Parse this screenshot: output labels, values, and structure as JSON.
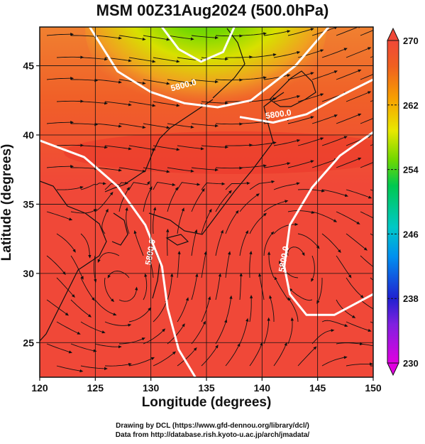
{
  "title": "MSM 00Z31Aug2024 (500.0hPa)",
  "x_axis": {
    "label": "Longitude (degrees)",
    "ticks": [
      120,
      125,
      130,
      135,
      140,
      145,
      150
    ],
    "range": [
      120,
      150
    ]
  },
  "y_axis": {
    "label": "Latitude  (degrees)",
    "ticks": [
      25,
      30,
      35,
      40,
      45
    ],
    "range": [
      22.5,
      47.8
    ]
  },
  "colorbar": {
    "ticks": [
      230,
      238,
      246,
      254,
      262,
      270
    ],
    "range": [
      230,
      270
    ],
    "colors": [
      "#e000e0",
      "#2020d0",
      "#0090f0",
      "#00c8c8",
      "#00c850",
      "#70d800",
      "#e8e800",
      "#f8a000",
      "#f06020",
      "#f04838"
    ]
  },
  "contours": [
    {
      "label": "5800.0",
      "path_desc": "subtropical ridge line north",
      "points": [
        [
          138,
          41.3
        ],
        [
          141,
          40.9
        ],
        [
          144,
          41.5
        ],
        [
          147,
          42.8
        ],
        [
          150,
          44.0
        ]
      ]
    },
    {
      "label": "5800.0",
      "path_desc": "",
      "points": [
        [
          120,
          39.6
        ],
        [
          124,
          38.4
        ],
        [
          127,
          36.3
        ],
        [
          129.5,
          33.5
        ],
        [
          131,
          30.5
        ],
        [
          131.5,
          27.5
        ],
        [
          132.5,
          24.5
        ],
        [
          134,
          22.5
        ]
      ]
    },
    {
      "label": "5800.0",
      "path_desc": "",
      "points": [
        [
          150,
          40.2
        ],
        [
          147,
          38.5
        ],
        [
          144.5,
          36.2
        ],
        [
          142.5,
          33.5
        ],
        [
          142,
          30.5
        ],
        [
          142.5,
          28.5
        ],
        [
          144,
          27.0
        ],
        [
          146.5,
          27.0
        ],
        [
          150,
          28.5
        ]
      ]
    },
    {
      "label": "",
      "path_desc": "northern trough",
      "points": [
        [
          124.5,
          47.8
        ],
        [
          127,
          44.6
        ],
        [
          130,
          43.1
        ],
        [
          133,
          42.3
        ],
        [
          136,
          42.0
        ],
        [
          139,
          42.5
        ],
        [
          143,
          45.0
        ],
        [
          146,
          47.8
        ]
      ]
    },
    {
      "label": "",
      "path_desc": "trough core",
      "points": [
        [
          131,
          47.8
        ],
        [
          132.5,
          46.2
        ],
        [
          134.5,
          45.3
        ],
        [
          136.5,
          46.0
        ],
        [
          137.5,
          47.8
        ]
      ]
    }
  ],
  "contour_labels": [
    {
      "text": "5800.0",
      "lon": 141.5,
      "lat": 41.3,
      "angle": -8
    },
    {
      "text": "5800.0",
      "lon": 133.0,
      "lat": 43.4,
      "angle": -15
    },
    {
      "text": "5800.0",
      "lon": 130.2,
      "lat": 31.5,
      "angle": -80
    },
    {
      "text": "5800.0",
      "lon": 142.2,
      "lat": 31.0,
      "angle": -80
    }
  ],
  "credits": [
    "Drawing by DCL (https://www.gfd-dennou.org/library/dcl/)",
    "Data from http://database.rish.kyoto-u.ac.jp/arch/jmadata/"
  ]
}
